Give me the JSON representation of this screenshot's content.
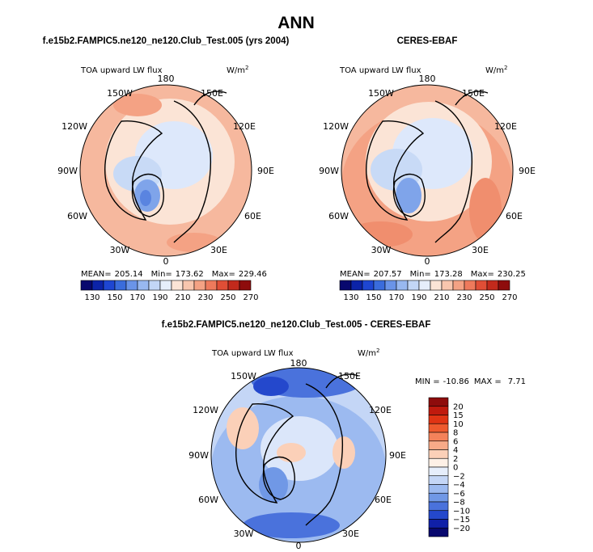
{
  "figure_title": "ANN",
  "chart_data": [
    {
      "type": "heatmap",
      "projection": "north-polar-stereographic",
      "title": "f.e15b2.FAMPIC5.ne120_ne120.Club_Test.005 (yrs 2004)",
      "variable": "TOA upward LW flux",
      "units": "W/m2",
      "units_base": "W/m",
      "units_exp": "2",
      "lon_labels": [
        "180",
        "150E",
        "120E",
        "90E",
        "60E",
        "30E",
        "0",
        "30W",
        "60W",
        "90W",
        "120W",
        "150W"
      ],
      "stats": {
        "mean_label": "MEAN=",
        "mean": "205.14",
        "min_label": "Min=",
        "min": "173.62",
        "max_label": "Max=",
        "max": "229.46"
      },
      "colorbar": {
        "orientation": "horizontal",
        "tick_labels": [
          "130",
          "150",
          "170",
          "190",
          "210",
          "230",
          "250",
          "270"
        ],
        "colors": [
          "#08086e",
          "#0c23a8",
          "#1e46d2",
          "#3a6cdc",
          "#6a94e8",
          "#98b8f0",
          "#c2d6f6",
          "#e6eefb",
          "#fbe4d6",
          "#f8c6ae",
          "#f4a284",
          "#ee7a5c",
          "#e04e36",
          "#c22a1c",
          "#8e0c0c"
        ]
      }
    },
    {
      "type": "heatmap",
      "projection": "north-polar-stereographic",
      "title": "CERES-EBAF",
      "variable": "TOA upward LW flux",
      "units": "W/m2",
      "units_base": "W/m",
      "units_exp": "2",
      "lon_labels": [
        "180",
        "150E",
        "120E",
        "90E",
        "60E",
        "30E",
        "0",
        "30W",
        "60W",
        "90W",
        "120W",
        "150W"
      ],
      "stats": {
        "mean_label": "MEAN=",
        "mean": "207.57",
        "min_label": "Min=",
        "min": "173.28",
        "max_label": "Max=",
        "max": "230.25"
      },
      "colorbar": {
        "orientation": "horizontal",
        "tick_labels": [
          "130",
          "150",
          "170",
          "190",
          "210",
          "230",
          "250",
          "270"
        ],
        "colors": [
          "#08086e",
          "#0c23a8",
          "#1e46d2",
          "#3a6cdc",
          "#6a94e8",
          "#98b8f0",
          "#c2d6f6",
          "#e6eefb",
          "#fbe4d6",
          "#f8c6ae",
          "#f4a284",
          "#ee7a5c",
          "#e04e36",
          "#c22a1c",
          "#8e0c0c"
        ]
      }
    },
    {
      "type": "heatmap",
      "projection": "north-polar-stereographic",
      "title": "f.e15b2.FAMPIC5.ne120_ne120.Club_Test.005 - CERES-EBAF",
      "variable": "TOA upward LW flux",
      "units": "W/m2",
      "units_base": "W/m",
      "units_exp": "2",
      "lon_labels": [
        "180",
        "150E",
        "120E",
        "90E",
        "60E",
        "30E",
        "0",
        "30W",
        "60W",
        "90W",
        "120W",
        "150W"
      ],
      "stats": {
        "min_label": "MIN =",
        "min": "-10.86",
        "max_label": "MAX =",
        "max": "7.71"
      },
      "colorbar": {
        "orientation": "vertical",
        "tick_labels": [
          "20",
          "15",
          "10",
          "8",
          "6",
          "4",
          "2",
          "0",
          "−2",
          "−4",
          "−6",
          "−8",
          "−10",
          "−15",
          "−20"
        ],
        "colors": [
          "#8e0c0c",
          "#c01a0e",
          "#e03414",
          "#ee5a2e",
          "#f4825a",
          "#f8aa88",
          "#fbd0b8",
          "#fdf0e6",
          "#e6eefb",
          "#c4d6f6",
          "#9cbaf0",
          "#7098e6",
          "#4a72dc",
          "#2448cc",
          "#1020a8",
          "#08086e"
        ]
      }
    }
  ]
}
